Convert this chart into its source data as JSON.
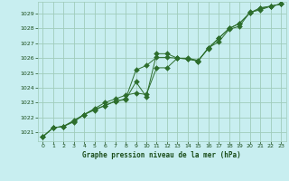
{
  "title": "Graphe pression niveau de la mer (hPa)",
  "background_color": "#c8eef0",
  "grid_color": "#a0ccbb",
  "line_color": "#2d6e2d",
  "marker_color": "#2d6e2d",
  "text_color": "#1a4d1a",
  "xlim": [
    -0.5,
    23.5
  ],
  "ylim": [
    1020.4,
    1029.8
  ],
  "xticks": [
    0,
    1,
    2,
    3,
    4,
    5,
    6,
    7,
    8,
    9,
    10,
    11,
    12,
    13,
    14,
    15,
    16,
    17,
    18,
    19,
    20,
    21,
    22,
    23
  ],
  "yticks": [
    1021,
    1022,
    1023,
    1024,
    1025,
    1026,
    1027,
    1028,
    1029
  ],
  "series1": {
    "x": [
      0,
      1,
      2,
      3,
      4,
      5,
      6,
      7,
      8,
      9,
      10,
      11,
      12,
      13,
      14,
      15,
      16,
      17,
      18,
      19,
      20,
      21,
      22,
      23
    ],
    "y": [
      1020.7,
      1021.3,
      1021.4,
      1021.7,
      1022.2,
      1022.5,
      1022.8,
      1023.1,
      1023.2,
      1024.4,
      1023.4,
      1026.3,
      1026.3,
      1026.0,
      1025.95,
      1025.8,
      1026.7,
      1027.35,
      1028.0,
      1028.35,
      1029.05,
      1029.4,
      1029.5,
      1029.65
    ]
  },
  "series2": {
    "x": [
      0,
      1,
      2,
      3,
      4,
      5,
      6,
      7,
      8,
      9,
      10,
      11,
      12,
      13,
      14,
      15,
      16,
      17,
      18,
      19,
      20,
      21,
      22,
      23
    ],
    "y": [
      1020.7,
      1021.3,
      1021.4,
      1021.75,
      1022.2,
      1022.55,
      1022.8,
      1023.1,
      1023.25,
      1025.2,
      1025.5,
      1026.05,
      1026.05,
      1026.0,
      1025.95,
      1025.8,
      1026.7,
      1027.1,
      1027.95,
      1028.15,
      1029.1,
      1029.25,
      1029.5,
      1029.65
    ]
  },
  "series3": {
    "x": [
      0,
      1,
      2,
      3,
      4,
      5,
      6,
      7,
      8,
      9,
      10,
      11,
      12,
      13,
      14,
      15,
      16,
      17,
      18,
      19,
      20,
      21,
      22,
      23
    ],
    "y": [
      1020.7,
      1021.3,
      1021.4,
      1021.8,
      1022.2,
      1022.6,
      1023.0,
      1023.25,
      1023.5,
      1023.65,
      1023.55,
      1025.35,
      1025.35,
      1026.0,
      1026.0,
      1025.85,
      1026.65,
      1027.35,
      1028.0,
      1028.35,
      1029.05,
      1029.35,
      1029.5,
      1029.65
    ]
  }
}
